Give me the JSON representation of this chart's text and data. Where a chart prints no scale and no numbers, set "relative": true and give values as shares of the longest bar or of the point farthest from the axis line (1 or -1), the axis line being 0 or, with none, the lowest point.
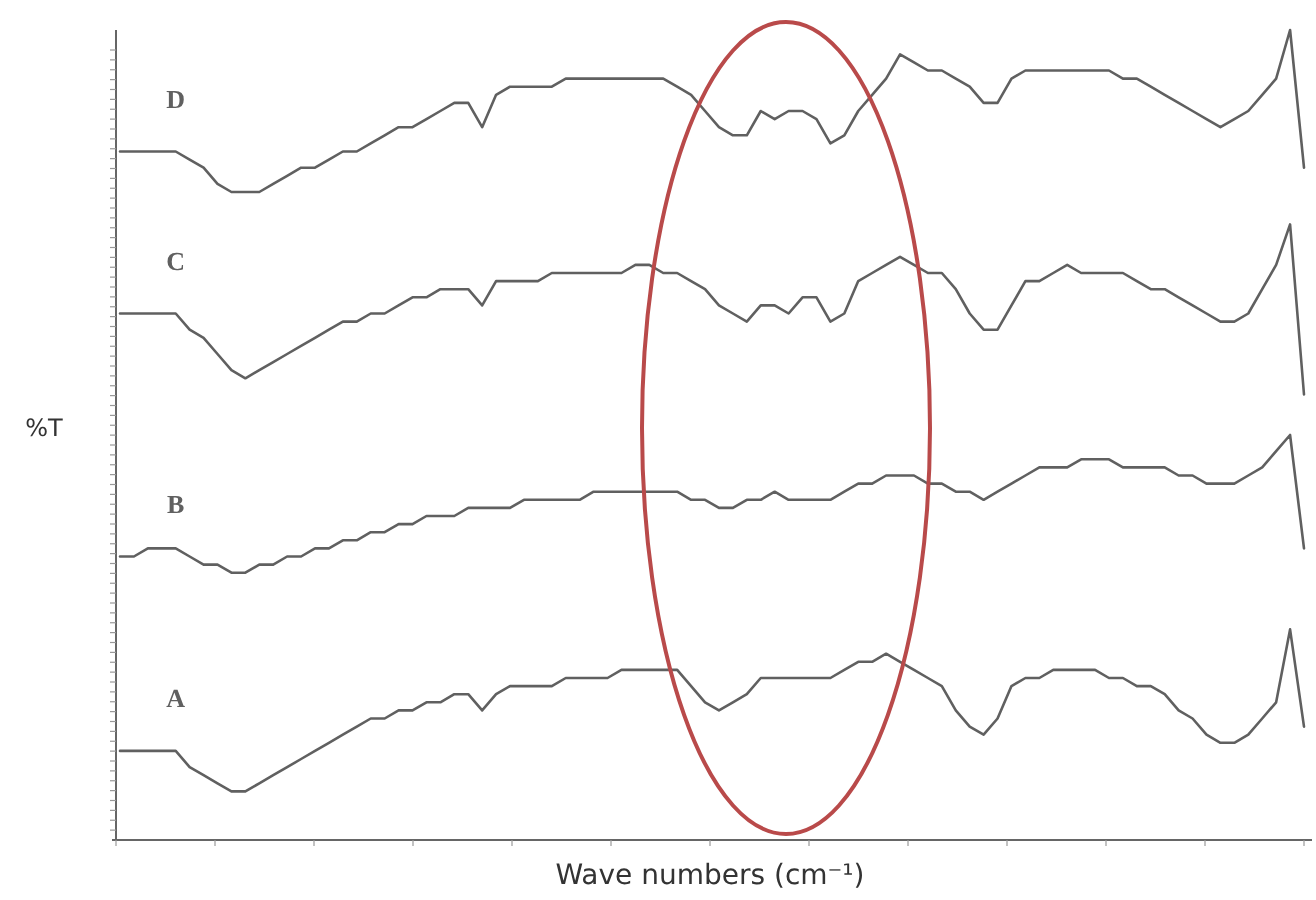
{
  "chart_data": {
    "type": "line",
    "xlabel": "Wave numbers (cm⁻¹)",
    "ylabel": "%T",
    "relative": true,
    "marker": "none",
    "line_style": "solid",
    "categories": [
      null,
      null,
      null,
      null,
      null,
      null,
      null,
      null,
      null,
      null,
      null,
      null,
      null,
      null,
      null,
      null,
      null,
      null,
      null,
      null,
      null,
      null,
      null,
      null,
      null,
      null,
      null,
      null,
      null,
      null,
      null,
      null,
      null,
      null,
      null,
      null,
      null,
      null,
      null,
      null,
      null,
      null,
      null,
      null,
      null,
      null,
      null,
      null,
      null,
      null,
      null,
      null,
      null,
      null,
      null,
      null,
      null,
      null,
      null,
      null,
      null,
      null,
      null,
      null,
      null,
      null,
      null,
      null,
      null,
      null,
      null,
      null,
      null,
      null,
      null,
      null,
      null,
      null,
      null,
      null,
      null,
      null,
      null,
      null,
      null,
      null
    ],
    "series": [
      {
        "name": "D",
        "color": "#606060",
        "values": [
          0.85,
          0.85,
          0.85,
          0.85,
          0.85,
          0.84,
          0.83,
          0.81,
          0.8,
          0.8,
          0.8,
          0.81,
          0.82,
          0.83,
          0.83,
          0.84,
          0.85,
          0.85,
          0.86,
          0.87,
          0.88,
          0.88,
          0.89,
          0.9,
          0.91,
          0.91,
          0.88,
          0.92,
          0.93,
          0.93,
          0.93,
          0.93,
          0.94,
          0.94,
          0.94,
          0.94,
          0.94,
          0.94,
          0.94,
          0.94,
          0.93,
          0.92,
          0.9,
          0.88,
          0.87,
          0.87,
          0.9,
          0.89,
          0.9,
          0.9,
          0.89,
          0.86,
          0.87,
          0.9,
          0.92,
          0.94,
          0.97,
          0.96,
          0.95,
          0.95,
          0.94,
          0.93,
          0.91,
          0.91,
          0.94,
          0.95,
          0.95,
          0.95,
          0.95,
          0.95,
          0.95,
          0.95,
          0.94,
          0.94,
          0.93,
          0.92,
          0.91,
          0.9,
          0.89,
          0.88,
          0.89,
          0.9,
          0.92,
          0.94,
          1,
          0.83
        ]
      },
      {
        "name": "C",
        "color": "#606060",
        "values": [
          0.65,
          0.65,
          0.65,
          0.65,
          0.65,
          0.63,
          0.62,
          0.6,
          0.58,
          0.57,
          0.58,
          0.59,
          0.6,
          0.61,
          0.62,
          0.63,
          0.64,
          0.64,
          0.65,
          0.65,
          0.66,
          0.67,
          0.67,
          0.68,
          0.68,
          0.68,
          0.66,
          0.69,
          0.69,
          0.69,
          0.69,
          0.7,
          0.7,
          0.7,
          0.7,
          0.7,
          0.7,
          0.71,
          0.71,
          0.7,
          0.7,
          0.69,
          0.68,
          0.66,
          0.65,
          0.64,
          0.66,
          0.66,
          0.65,
          0.67,
          0.67,
          0.64,
          0.65,
          0.69,
          0.7,
          0.71,
          0.72,
          0.71,
          0.7,
          0.7,
          0.68,
          0.65,
          0.63,
          0.63,
          0.66,
          0.69,
          0.69,
          0.7,
          0.71,
          0.7,
          0.7,
          0.7,
          0.7,
          0.69,
          0.68,
          0.68,
          0.67,
          0.66,
          0.65,
          0.64,
          0.64,
          0.65,
          0.68,
          0.71,
          0.76,
          0.55
        ]
      },
      {
        "name": "B",
        "color": "#606060",
        "values": [
          0.35,
          0.35,
          0.36,
          0.36,
          0.36,
          0.35,
          0.34,
          0.34,
          0.33,
          0.33,
          0.34,
          0.34,
          0.35,
          0.35,
          0.36,
          0.36,
          0.37,
          0.37,
          0.38,
          0.38,
          0.39,
          0.39,
          0.4,
          0.4,
          0.4,
          0.41,
          0.41,
          0.41,
          0.41,
          0.42,
          0.42,
          0.42,
          0.42,
          0.42,
          0.43,
          0.43,
          0.43,
          0.43,
          0.43,
          0.43,
          0.43,
          0.42,
          0.42,
          0.41,
          0.41,
          0.42,
          0.42,
          0.43,
          0.42,
          0.42,
          0.42,
          0.42,
          0.43,
          0.44,
          0.44,
          0.45,
          0.45,
          0.45,
          0.44,
          0.44,
          0.43,
          0.43,
          0.42,
          0.43,
          0.44,
          0.45,
          0.46,
          0.46,
          0.46,
          0.47,
          0.47,
          0.47,
          0.46,
          0.46,
          0.46,
          0.46,
          0.45,
          0.45,
          0.44,
          0.44,
          0.44,
          0.45,
          0.46,
          0.48,
          0.5,
          0.36
        ]
      },
      {
        "name": "A",
        "color": "#606060",
        "values": [
          0.11,
          0.11,
          0.11,
          0.11,
          0.11,
          0.09,
          0.08,
          0.07,
          0.06,
          0.06,
          0.07,
          0.08,
          0.09,
          0.1,
          0.11,
          0.12,
          0.13,
          0.14,
          0.15,
          0.15,
          0.16,
          0.16,
          0.17,
          0.17,
          0.18,
          0.18,
          0.16,
          0.18,
          0.19,
          0.19,
          0.19,
          0.19,
          0.2,
          0.2,
          0.2,
          0.2,
          0.21,
          0.21,
          0.21,
          0.21,
          0.21,
          0.19,
          0.17,
          0.16,
          0.17,
          0.18,
          0.2,
          0.2,
          0.2,
          0.2,
          0.2,
          0.2,
          0.21,
          0.22,
          0.22,
          0.23,
          0.22,
          0.21,
          0.2,
          0.19,
          0.16,
          0.14,
          0.13,
          0.15,
          0.19,
          0.2,
          0.2,
          0.21,
          0.21,
          0.21,
          0.21,
          0.2,
          0.2,
          0.19,
          0.19,
          0.18,
          0.16,
          0.15,
          0.13,
          0.12,
          0.12,
          0.13,
          0.15,
          0.17,
          0.26,
          0.14
        ]
      }
    ]
  }
}
